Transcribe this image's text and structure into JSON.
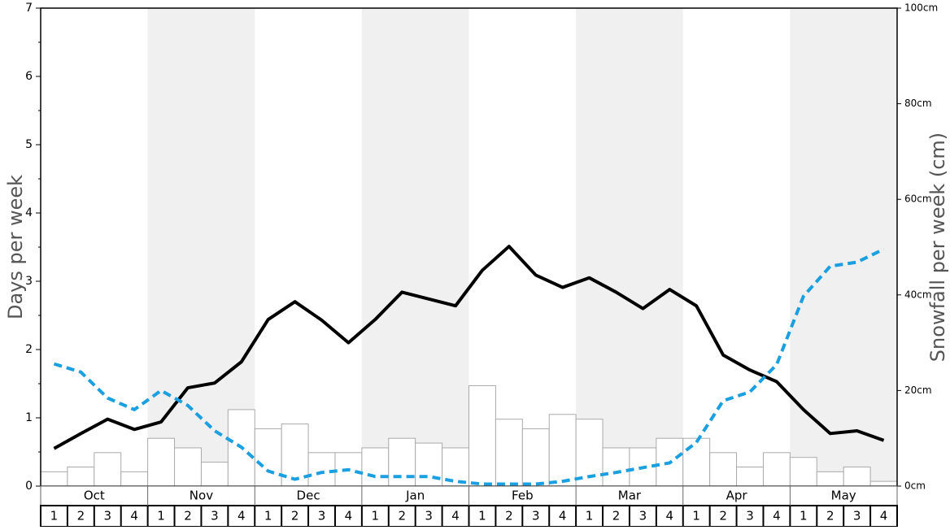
{
  "chart_data": {
    "type": "bar-line",
    "ylabel": "Days per week",
    "y2label": "Snowfall per week (cm)",
    "months": [
      "Oct",
      "Nov",
      "Dec",
      "Jan",
      "Feb",
      "Mar",
      "Apr",
      "May"
    ],
    "categories": [
      "1",
      "2",
      "3",
      "4",
      "1",
      "2",
      "3",
      "4",
      "1",
      "2",
      "3",
      "4",
      "1",
      "2",
      "3",
      "4",
      "1",
      "2",
      "3",
      "4",
      "1",
      "2",
      "3",
      "4",
      "1",
      "2",
      "3",
      "4",
      "1",
      "2",
      "3",
      "4"
    ],
    "ylim": [
      0,
      7
    ],
    "yticks": [
      0,
      1,
      2,
      3,
      4,
      5,
      6,
      7
    ],
    "y2lim": [
      0,
      100
    ],
    "y2ticks": [
      {
        "value": 0,
        "label": "0cm"
      },
      {
        "value": 20,
        "label": "20cm"
      },
      {
        "value": 40,
        "label": "40cm"
      },
      {
        "value": 60,
        "label": "60cm"
      },
      {
        "value": 80,
        "label": "80cm"
      },
      {
        "value": 100,
        "label": "100cm"
      }
    ],
    "series": [
      {
        "type": "bar",
        "axis": "y2",
        "color": "#ffffff",
        "values": [
          3,
          4,
          7,
          3,
          10,
          8,
          5,
          16,
          12,
          13,
          7,
          7,
          8,
          10,
          9,
          8,
          21,
          14,
          12,
          15,
          14,
          8,
          8,
          10,
          10,
          7,
          4,
          7,
          6,
          3,
          4,
          1
        ]
      },
      {
        "type": "line",
        "color": "#000000",
        "dashed": false,
        "values": [
          0.55,
          0.77,
          0.98,
          0.83,
          0.94,
          1.44,
          1.51,
          1.82,
          2.44,
          2.7,
          2.43,
          2.1,
          2.44,
          2.84,
          2.74,
          2.64,
          3.16,
          3.51,
          3.09,
          2.91,
          3.05,
          2.84,
          2.6,
          2.88,
          2.64,
          1.92,
          1.7,
          1.53,
          1.12,
          0.77,
          0.81,
          0.67
        ]
      },
      {
        "type": "line",
        "color": "#1a9fe0",
        "dashed": true,
        "values": [
          1.79,
          1.67,
          1.29,
          1.12,
          1.4,
          1.18,
          0.81,
          0.57,
          0.22,
          0.1,
          0.2,
          0.24,
          0.14,
          0.14,
          0.14,
          0.07,
          0.03,
          0.03,
          0.03,
          0.07,
          0.14,
          0.2,
          0.27,
          0.34,
          0.64,
          1.25,
          1.38,
          1.78,
          2.78,
          3.22,
          3.28,
          3.47
        ]
      }
    ]
  }
}
